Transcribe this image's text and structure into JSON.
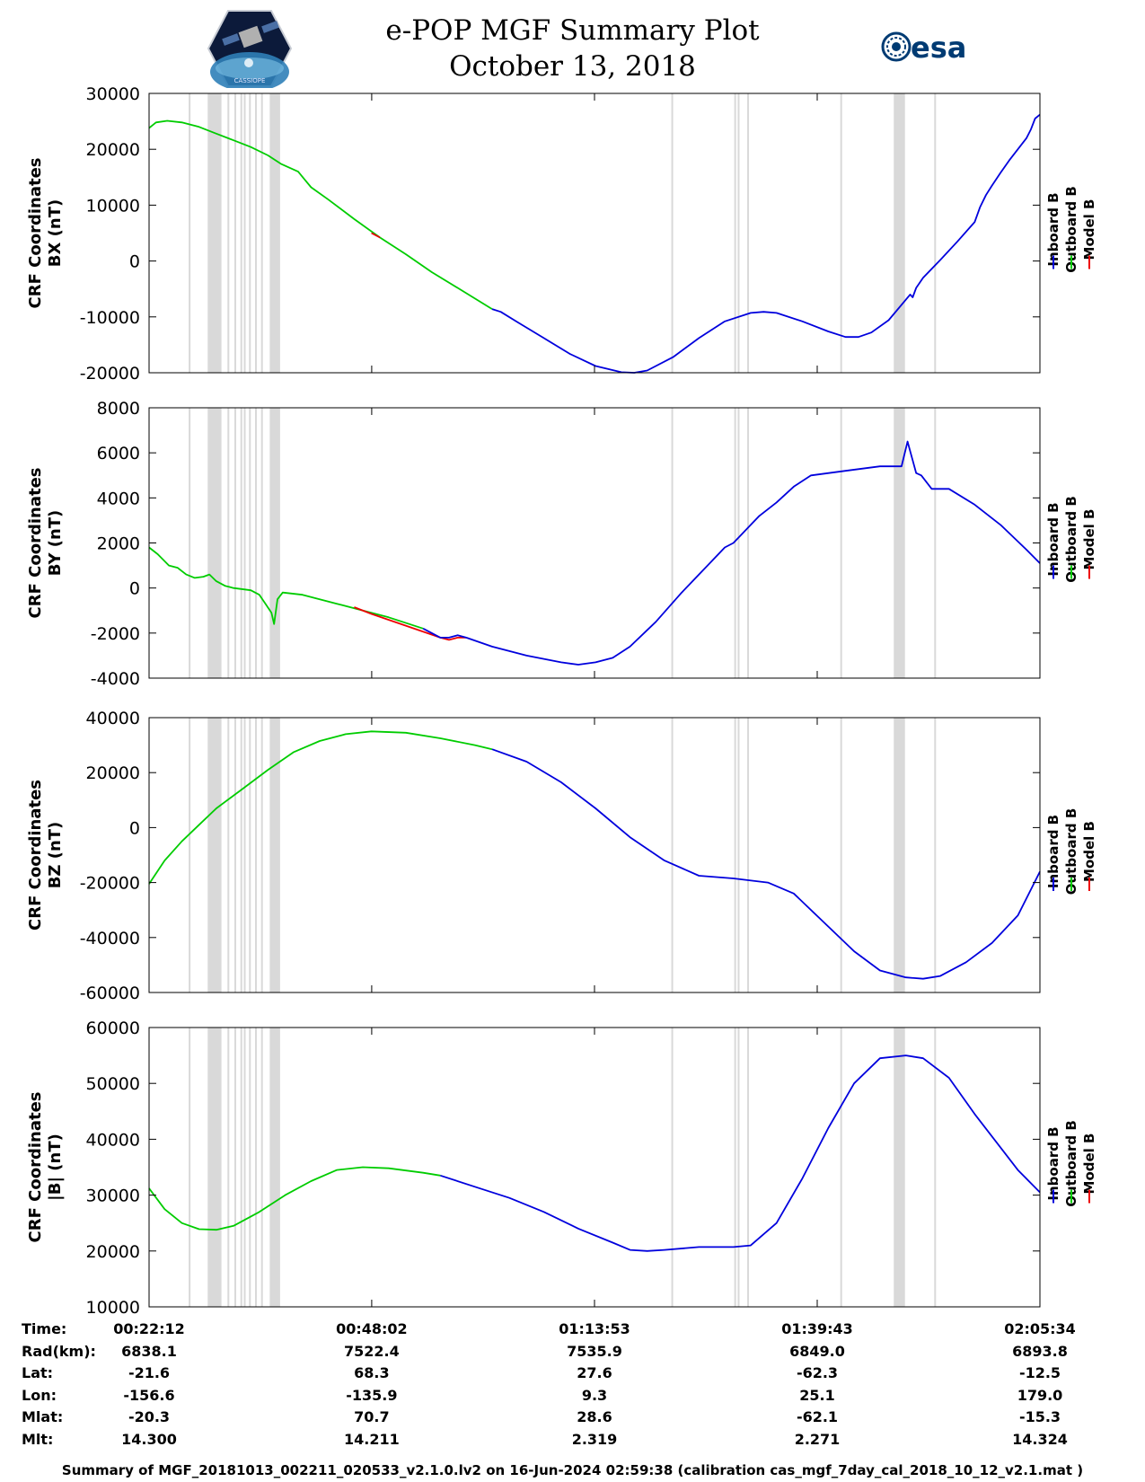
{
  "header": {
    "title": "e-POP MGF Summary Plot",
    "date": "October 13, 2018",
    "mission_logo_text": "CASSIOPE",
    "esa_logo_text": "esa"
  },
  "colors": {
    "inboard": "#0000dd",
    "outboard": "#00cc00",
    "model": "#ee0000",
    "gap_band": "#d9d9d9"
  },
  "legend": [
    "Inboard B",
    "Outboard B",
    "Model B"
  ],
  "chart_data": [
    {
      "type": "line",
      "ylabel": [
        "CRF Coordinates",
        "BX (nT)"
      ],
      "ylim": [
        -20000,
        30000
      ],
      "yticks": [
        "30000",
        "20000",
        "10000",
        "0",
        "-10000",
        "-20000"
      ],
      "ytick_values": [
        30000,
        20000,
        10000,
        0,
        -10000,
        -20000
      ],
      "xlim_minutes": [
        22.2,
        125.56
      ],
      "series": [
        {
          "name": "Outboard B",
          "color_key": "outboard",
          "points": [
            [
              22.2,
              23800
            ],
            [
              23.0,
              24800
            ],
            [
              24.3,
              25100
            ],
            [
              26,
              24800
            ],
            [
              28,
              24000
            ],
            [
              30,
              22800
            ],
            [
              32,
              21600
            ],
            [
              34,
              20400
            ],
            [
              36,
              18900
            ],
            [
              37.5,
              17400
            ],
            [
              39.5,
              16000
            ],
            [
              40.3,
              14500
            ],
            [
              41,
              13200
            ],
            [
              43,
              11000
            ],
            [
              46,
              7500
            ],
            [
              49,
              4200
            ],
            [
              52,
              1200
            ],
            [
              55,
              -2000
            ],
            [
              58,
              -4800
            ],
            [
              62,
              -8600
            ]
          ]
        },
        {
          "name": "Model B",
          "color_key": "model",
          "points": [
            [
              48,
              5000
            ],
            [
              49,
              4200
            ]
          ]
        },
        {
          "name": "Inboard B",
          "color_key": "inboard",
          "points": [
            [
              62,
              -8600
            ],
            [
              63,
              -9100
            ],
            [
              65,
              -11000
            ],
            [
              68,
              -13800
            ],
            [
              71,
              -16600
            ],
            [
              74,
              -18800
            ],
            [
              77,
              -19900
            ],
            [
              78.5,
              -20000
            ],
            [
              80,
              -19600
            ],
            [
              83,
              -17200
            ],
            [
              86,
              -13800
            ],
            [
              89,
              -10800
            ],
            [
              92,
              -9300
            ],
            [
              93.5,
              -9100
            ],
            [
              95,
              -9300
            ],
            [
              98,
              -10800
            ],
            [
              101,
              -12600
            ],
            [
              103,
              -13600
            ],
            [
              104.5,
              -13600
            ],
            [
              106,
              -12800
            ],
            [
              108,
              -10600
            ],
            [
              110.5,
              -6000
            ],
            [
              110.8,
              -6500
            ],
            [
              111.2,
              -4800
            ],
            [
              112,
              -3000
            ],
            [
              114,
              200
            ],
            [
              116,
              3500
            ],
            [
              118,
              7000
            ],
            [
              118.6,
              9600
            ],
            [
              119.3,
              11800
            ],
            [
              120,
              13500
            ],
            [
              121,
              15800
            ],
            [
              122,
              18000
            ],
            [
              123,
              20000
            ],
            [
              124,
              22000
            ],
            [
              124.5,
              23500
            ],
            [
              125,
              25500
            ],
            [
              125.56,
              26200
            ]
          ]
        }
      ]
    },
    {
      "type": "line",
      "ylabel": [
        "CRF Coordinates",
        "BY (nT)"
      ],
      "ylim": [
        -4000,
        8000
      ],
      "yticks": [
        "8000",
        "6000",
        "4000",
        "2000",
        "0",
        "-2000",
        "-4000"
      ],
      "ytick_values": [
        8000,
        6000,
        4000,
        2000,
        0,
        -2000,
        -4000
      ],
      "xlim_minutes": [
        22.2,
        125.56
      ],
      "series": [
        {
          "name": "Outboard B",
          "color_key": "outboard",
          "points": [
            [
              22.2,
              1800
            ],
            [
              23.2,
              1500
            ],
            [
              24.5,
              1000
            ],
            [
              25.5,
              900
            ],
            [
              26.5,
              600
            ],
            [
              27.5,
              450
            ],
            [
              28.5,
              500
            ],
            [
              29.2,
              600
            ],
            [
              30,
              300
            ],
            [
              31,
              100
            ],
            [
              32,
              0
            ],
            [
              34,
              -100
            ],
            [
              35,
              -300
            ],
            [
              35.7,
              -700
            ],
            [
              36.4,
              -1100
            ],
            [
              36.7,
              -1600
            ],
            [
              37.1,
              -500
            ],
            [
              37.7,
              -200
            ],
            [
              40,
              -300
            ],
            [
              44,
              -700
            ],
            [
              48,
              -1100
            ],
            [
              50,
              -1300
            ],
            [
              54,
              -1800
            ]
          ]
        },
        {
          "name": "Model B",
          "color_key": "model",
          "points": [
            [
              46,
              -850
            ],
            [
              48,
              -1150
            ],
            [
              56,
              -2200
            ],
            [
              57,
              -2300
            ],
            [
              58,
              -2200
            ],
            [
              59,
              -2200
            ]
          ]
        },
        {
          "name": "Inboard B",
          "color_key": "inboard",
          "points": [
            [
              54,
              -1800
            ],
            [
              56,
              -2200
            ],
            [
              57,
              -2200
            ],
            [
              58,
              -2100
            ],
            [
              59,
              -2200
            ],
            [
              62,
              -2600
            ],
            [
              66,
              -3000
            ],
            [
              70,
              -3300
            ],
            [
              72,
              -3400
            ],
            [
              74,
              -3300
            ],
            [
              76,
              -3100
            ],
            [
              78,
              -2600
            ],
            [
              81,
              -1500
            ],
            [
              84,
              -200
            ],
            [
              87,
              1000
            ],
            [
              89,
              1800
            ],
            [
              90,
              2000
            ],
            [
              93,
              3200
            ],
            [
              95,
              3800
            ],
            [
              97,
              4500
            ],
            [
              99,
              5000
            ],
            [
              103,
              5200
            ],
            [
              107,
              5400
            ],
            [
              109.5,
              5400
            ],
            [
              110.2,
              6500
            ],
            [
              110.7,
              5800
            ],
            [
              111.2,
              5100
            ],
            [
              111.8,
              5000
            ],
            [
              113,
              4400
            ],
            [
              115,
              4400
            ],
            [
              118,
              3700
            ],
            [
              121,
              2800
            ],
            [
              124,
              1700
            ],
            [
              125.56,
              1100
            ]
          ]
        }
      ]
    },
    {
      "type": "line",
      "ylabel": [
        "CRF Coordinates",
        "BZ (nT)"
      ],
      "ylim": [
        -60000,
        40000
      ],
      "yticks": [
        "40000",
        "20000",
        "0",
        "-20000",
        "-40000",
        "-60000"
      ],
      "ytick_values": [
        40000,
        20000,
        0,
        -20000,
        -40000,
        -60000
      ],
      "xlim_minutes": [
        22.2,
        125.56
      ],
      "series": [
        {
          "name": "Outboard B",
          "color_key": "outboard",
          "points": [
            [
              22.2,
              -20500
            ],
            [
              24,
              -12000
            ],
            [
              26,
              -5000
            ],
            [
              28,
              1000
            ],
            [
              30,
              7000
            ],
            [
              33,
              14000
            ],
            [
              36,
              21000
            ],
            [
              39,
              27500
            ],
            [
              42,
              31500
            ],
            [
              45,
              34000
            ],
            [
              48,
              35000
            ],
            [
              52,
              34500
            ],
            [
              56,
              32500
            ],
            [
              60,
              30000
            ],
            [
              62,
              28500
            ]
          ]
        },
        {
          "name": "Inboard B",
          "color_key": "inboard",
          "points": [
            [
              62,
              28500
            ],
            [
              66,
              24000
            ],
            [
              70,
              16500
            ],
            [
              74,
              7000
            ],
            [
              78,
              -3500
            ],
            [
              82,
              -12000
            ],
            [
              86,
              -17500
            ],
            [
              90,
              -18500
            ],
            [
              94,
              -20000
            ],
            [
              97,
              -24000
            ],
            [
              100,
              -33000
            ],
            [
              104,
              -45000
            ],
            [
              107,
              -52000
            ],
            [
              110,
              -54500
            ],
            [
              112,
              -55000
            ],
            [
              114,
              -54000
            ],
            [
              117,
              -49000
            ],
            [
              120,
              -42000
            ],
            [
              123,
              -32000
            ],
            [
              125.56,
              -16000
            ]
          ]
        }
      ]
    },
    {
      "type": "line",
      "ylabel": [
        "CRF Coordinates",
        "|B| (nT)"
      ],
      "ylim": [
        10000,
        60000
      ],
      "yticks": [
        "60000",
        "50000",
        "40000",
        "30000",
        "20000",
        "10000"
      ],
      "ytick_values": [
        60000,
        50000,
        40000,
        30000,
        20000,
        10000
      ],
      "xlim_minutes": [
        22.2,
        125.56
      ],
      "series": [
        {
          "name": "Outboard B",
          "color_key": "outboard",
          "points": [
            [
              22.2,
              31200
            ],
            [
              24,
              27500
            ],
            [
              26,
              25000
            ],
            [
              28,
              23900
            ],
            [
              30,
              23800
            ],
            [
              32,
              24500
            ],
            [
              35,
              27000
            ],
            [
              38,
              30000
            ],
            [
              41,
              32500
            ],
            [
              44,
              34500
            ],
            [
              47,
              35000
            ],
            [
              50,
              34800
            ],
            [
              54,
              34000
            ],
            [
              56,
              33500
            ]
          ]
        },
        {
          "name": "Inboard B",
          "color_key": "inboard",
          "points": [
            [
              56,
              33500
            ],
            [
              60,
              31500
            ],
            [
              64,
              29500
            ],
            [
              68,
              27000
            ],
            [
              72,
              24000
            ],
            [
              76,
              21500
            ],
            [
              78,
              20200
            ],
            [
              80,
              20000
            ],
            [
              82,
              20200
            ],
            [
              86,
              20700
            ],
            [
              90,
              20700
            ],
            [
              92,
              21000
            ],
            [
              95,
              25000
            ],
            [
              98,
              33000
            ],
            [
              101,
              42000
            ],
            [
              104,
              50000
            ],
            [
              107,
              54500
            ],
            [
              110,
              55000
            ],
            [
              112,
              54500
            ],
            [
              115,
              51000
            ],
            [
              118,
              44500
            ],
            [
              121,
              38500
            ],
            [
              123,
              34500
            ],
            [
              125.56,
              30500
            ]
          ]
        }
      ]
    }
  ],
  "gap_bands_minutes": [
    [
      29.0,
      30.6
    ],
    [
      36.2,
      37.4
    ],
    [
      108.6,
      109.9
    ]
  ],
  "gap_lines_minutes": [
    26.9,
    31.4,
    32.2,
    32.9,
    33.3,
    33.9,
    34.6,
    35.3,
    82.9,
    90.2,
    90.6,
    91.7,
    102.5,
    113.4
  ],
  "x_axis": {
    "xlim_minutes": [
      22.2,
      125.56
    ],
    "tick_minutes": [
      22.2,
      48.03,
      73.88,
      99.72,
      125.56
    ],
    "tick_labels": [
      "00:22:12",
      "00:48:02",
      "01:13:53",
      "01:39:43",
      "02:05:34"
    ]
  },
  "info_table": {
    "labels": [
      "Time:",
      "Rad(km):",
      "Lat:",
      "Lon:",
      "Mlat:",
      "Mlt:"
    ],
    "rows": [
      [
        "00:22:12",
        "00:48:02",
        "01:13:53",
        "01:39:43",
        "02:05:34"
      ],
      [
        "6838.1",
        "7522.4",
        "7535.9",
        "6849.0",
        "6893.8"
      ],
      [
        "-21.6",
        "68.3",
        "27.6",
        "-62.3",
        "-12.5"
      ],
      [
        "-156.6",
        "-135.9",
        "9.3",
        "25.1",
        "179.0"
      ],
      [
        "-20.3",
        "70.7",
        "28.6",
        "-62.1",
        "-15.3"
      ],
      [
        "14.300",
        "14.211",
        "2.319",
        "2.271",
        "14.324"
      ]
    ]
  },
  "footer": "Summary of MGF_20181013_002211_020533_v2.1.0.lv2 on 16-Jun-2024 02:59:38 (calibration cas_mgf_7day_cal_2018_10_12_v2.1.mat )"
}
